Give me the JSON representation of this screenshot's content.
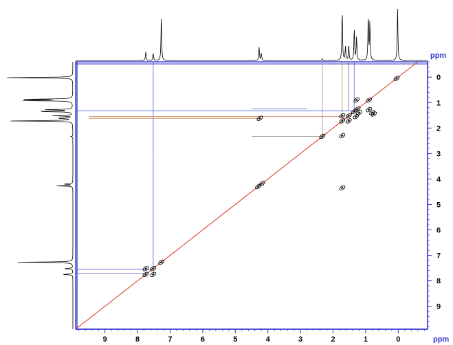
{
  "chart_data": {
    "type": "2d-nmr-cosy",
    "title": "",
    "x_axis": {
      "label": "ppm",
      "ticks": [
        9,
        8,
        7,
        6,
        5,
        4,
        3,
        2,
        1,
        0
      ],
      "range": [
        9.9,
        -0.9
      ],
      "reversed": true
    },
    "y_axis": {
      "label": "ppm",
      "ticks": [
        0,
        1,
        2,
        3,
        4,
        5,
        6,
        7,
        8,
        9
      ],
      "range": [
        -0.6,
        9.9
      ],
      "position": "right"
    },
    "projection_peaks": [
      {
        "ppm": 7.75,
        "intensity": 0.16
      },
      {
        "ppm": 7.52,
        "intensity": 0.14
      },
      {
        "ppm": 7.27,
        "intensity": 0.85
      },
      {
        "ppm": 4.27,
        "intensity": 0.25
      },
      {
        "ppm": 4.2,
        "intensity": 0.14
      },
      {
        "ppm": 2.33,
        "intensity": 0.03
      },
      {
        "ppm": 1.72,
        "intensity": 0.95
      },
      {
        "ppm": 1.62,
        "intensity": 0.25
      },
      {
        "ppm": 1.52,
        "intensity": 0.3
      },
      {
        "ppm": 1.35,
        "intensity": 0.6
      },
      {
        "ppm": 1.28,
        "intensity": 0.45
      },
      {
        "ppm": 0.92,
        "intensity": 0.85
      },
      {
        "ppm": 0.87,
        "intensity": 0.7
      },
      {
        "ppm": 0.02,
        "intensity": 1.0
      }
    ],
    "diagonal_peaks": [
      {
        "x": 7.75,
        "y": 7.75
      },
      {
        "x": 7.52,
        "y": 7.52
      },
      {
        "x": 7.27,
        "y": 7.27
      },
      {
        "x": 4.3,
        "y": 4.3
      },
      {
        "x": 4.18,
        "y": 4.18
      },
      {
        "x": 2.33,
        "y": 2.33
      },
      {
        "x": 1.72,
        "y": 1.72
      },
      {
        "x": 1.52,
        "y": 1.52
      },
      {
        "x": 1.35,
        "y": 1.35
      },
      {
        "x": 1.25,
        "y": 1.25
      },
      {
        "x": 0.9,
        "y": 0.9
      },
      {
        "x": 0.05,
        "y": 0.05
      }
    ],
    "cross_peaks": [
      {
        "x": 7.75,
        "y": 7.52
      },
      {
        "x": 7.52,
        "y": 7.75
      },
      {
        "x": 4.25,
        "y": 1.62
      },
      {
        "x": 1.72,
        "y": 1.52
      },
      {
        "x": 1.52,
        "y": 1.72
      },
      {
        "x": 1.28,
        "y": 0.9
      },
      {
        "x": 0.9,
        "y": 1.28
      },
      {
        "x": 1.3,
        "y": 1.55
      },
      {
        "x": 1.2,
        "y": 1.4
      },
      {
        "x": 0.8,
        "y": 1.4
      },
      {
        "x": 0.75,
        "y": 1.45
      },
      {
        "x": 1.72,
        "y": 4.35
      },
      {
        "x": 1.72,
        "y": 2.3
      }
    ],
    "correlation_lines": [
      {
        "color": "#5566dd",
        "from": [
          9.9,
          7.55
        ],
        "to": [
          7.52,
          7.55
        ]
      },
      {
        "color": "#5566dd",
        "from": [
          9.9,
          7.7
        ],
        "to": [
          7.75,
          7.7
        ]
      },
      {
        "color": "#5566dd",
        "from": [
          7.52,
          3.1
        ],
        "to": [
          7.52,
          7.55
        ]
      },
      {
        "color": "#5566dd",
        "from": [
          7.52,
          -0.6
        ],
        "to": [
          7.52,
          3.1
        ]
      },
      {
        "color": "#5566dd",
        "from": [
          9.9,
          1.32
        ],
        "to": [
          1.35,
          1.32
        ]
      },
      {
        "color": "#d08050",
        "from": [
          9.5,
          1.55
        ],
        "to": [
          1.72,
          1.55
        ]
      },
      {
        "color": "#d08050",
        "from": [
          9.5,
          1.62
        ],
        "to": [
          4.27,
          1.62
        ]
      },
      {
        "color": "#5566dd",
        "from": [
          4.5,
          1.25
        ],
        "to": [
          2.8,
          1.25
        ]
      },
      {
        "color": "#999999",
        "from": [
          4.5,
          2.33
        ],
        "to": [
          2.33,
          2.33
        ]
      },
      {
        "color": "#999999",
        "from": [
          2.33,
          -0.6
        ],
        "to": [
          2.33,
          2.33
        ]
      },
      {
        "color": "#d08050",
        "from": [
          1.72,
          -0.6
        ],
        "to": [
          1.72,
          1.55
        ]
      },
      {
        "color": "#5566dd",
        "from": [
          1.52,
          -0.6
        ],
        "to": [
          1.52,
          1.32
        ]
      },
      {
        "color": "#5566dd",
        "from": [
          1.35,
          -0.6
        ],
        "to": [
          1.35,
          1.32
        ]
      }
    ],
    "colors": {
      "axis": "#3333cc",
      "diagonal": "#e03020",
      "spectrum": "#000000",
      "contour": "#000000"
    }
  }
}
